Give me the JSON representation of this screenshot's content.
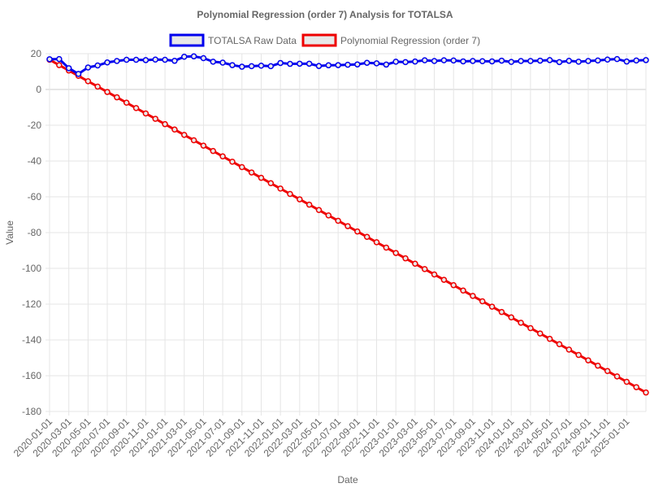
{
  "chart_data": {
    "type": "line",
    "title": "Polynomial Regression (order 7) Analysis for TOTALSA",
    "xlabel": "Date",
    "ylabel": "Value",
    "ylim": [
      -180,
      20
    ],
    "yticks": [
      20,
      0,
      -20,
      -40,
      -60,
      -80,
      -100,
      -120,
      -140,
      -160,
      -180
    ],
    "xlim": [
      "2020-01-01",
      "2025-03-01"
    ],
    "xtick_labels": [
      "2020-01-01",
      "2020-03-01",
      "2020-05-01",
      "2020-07-01",
      "2020-09-01",
      "2020-11-01",
      "2021-01-01",
      "2021-03-01",
      "2021-05-01",
      "2021-07-01",
      "2021-09-01",
      "2021-11-01",
      "2022-01-01",
      "2022-03-01",
      "2022-05-01",
      "2022-07-01",
      "2022-09-01",
      "2022-11-01",
      "2023-01-01",
      "2023-03-01",
      "2023-05-01",
      "2023-07-01",
      "2023-09-01",
      "2023-11-01",
      "2024-01-01",
      "2024-03-01",
      "2024-05-01",
      "2024-07-01",
      "2024-09-01",
      "2024-11-01",
      "2025-01-01"
    ],
    "grid": true,
    "legend_position": "top",
    "x": [
      "2020-01-01",
      "2020-02-01",
      "2020-03-01",
      "2020-04-01",
      "2020-05-01",
      "2020-06-01",
      "2020-07-01",
      "2020-08-01",
      "2020-09-01",
      "2020-10-01",
      "2020-11-01",
      "2020-12-01",
      "2021-01-01",
      "2021-02-01",
      "2021-03-01",
      "2021-04-01",
      "2021-05-01",
      "2021-06-01",
      "2021-07-01",
      "2021-08-01",
      "2021-09-01",
      "2021-10-01",
      "2021-11-01",
      "2021-12-01",
      "2022-01-01",
      "2022-02-01",
      "2022-03-01",
      "2022-04-01",
      "2022-05-01",
      "2022-06-01",
      "2022-07-01",
      "2022-08-01",
      "2022-09-01",
      "2022-10-01",
      "2022-11-01",
      "2022-12-01",
      "2023-01-01",
      "2023-02-01",
      "2023-03-01",
      "2023-04-01",
      "2023-05-01",
      "2023-06-01",
      "2023-07-01",
      "2023-08-01",
      "2023-09-01",
      "2023-10-01",
      "2023-11-01",
      "2023-12-01",
      "2024-01-01",
      "2024-02-01",
      "2024-03-01",
      "2024-04-01",
      "2024-05-01",
      "2024-06-01",
      "2024-07-01",
      "2024-08-01",
      "2024-09-01",
      "2024-10-01",
      "2024-11-01",
      "2024-12-01",
      "2025-01-01",
      "2025-02-01",
      "2025-03-01"
    ],
    "series": [
      {
        "name": "TOTALSA Raw Data",
        "color": "#0000ee",
        "values": [
          16.9,
          17.0,
          11.9,
          8.7,
          12.3,
          13.4,
          15.1,
          15.9,
          16.6,
          16.6,
          16.4,
          16.7,
          16.6,
          16.0,
          18.3,
          18.5,
          17.5,
          15.5,
          15.0,
          13.6,
          12.7,
          13.0,
          13.3,
          13.0,
          14.8,
          14.3,
          14.4,
          14.4,
          13.1,
          13.5,
          13.6,
          13.8,
          14.0,
          14.9,
          14.6,
          13.9,
          15.5,
          15.3,
          15.6,
          16.3,
          15.9,
          16.3,
          16.2,
          15.7,
          15.9,
          15.8,
          15.7,
          16.1,
          15.4,
          15.9,
          15.9,
          16.1,
          16.4,
          15.3,
          16.0,
          15.5,
          15.9,
          16.2,
          16.7,
          17.0,
          15.6,
          16.2,
          16.4
        ]
      },
      {
        "name": "Polynomial Regression (order 7)",
        "color": "#ee0000",
        "values": [
          16.6,
          13.6,
          10.6,
          7.6,
          4.6,
          1.6,
          -1.4,
          -4.4,
          -7.4,
          -10.4,
          -13.4,
          -16.4,
          -19.4,
          -22.4,
          -25.4,
          -28.4,
          -31.4,
          -34.4,
          -37.4,
          -40.4,
          -43.4,
          -46.4,
          -49.4,
          -52.4,
          -55.4,
          -58.4,
          -61.4,
          -64.4,
          -67.4,
          -70.4,
          -73.4,
          -76.4,
          -79.4,
          -82.4,
          -85.4,
          -88.4,
          -91.4,
          -94.4,
          -97.4,
          -100.4,
          -103.4,
          -106.4,
          -109.4,
          -112.4,
          -115.4,
          -118.4,
          -121.4,
          -124.4,
          -127.4,
          -130.4,
          -133.4,
          -136.4,
          -139.4,
          -142.4,
          -145.4,
          -148.4,
          -151.4,
          -154.4,
          -157.4,
          -160.4,
          -163.4,
          -166.4,
          -169.4
        ]
      }
    ]
  }
}
